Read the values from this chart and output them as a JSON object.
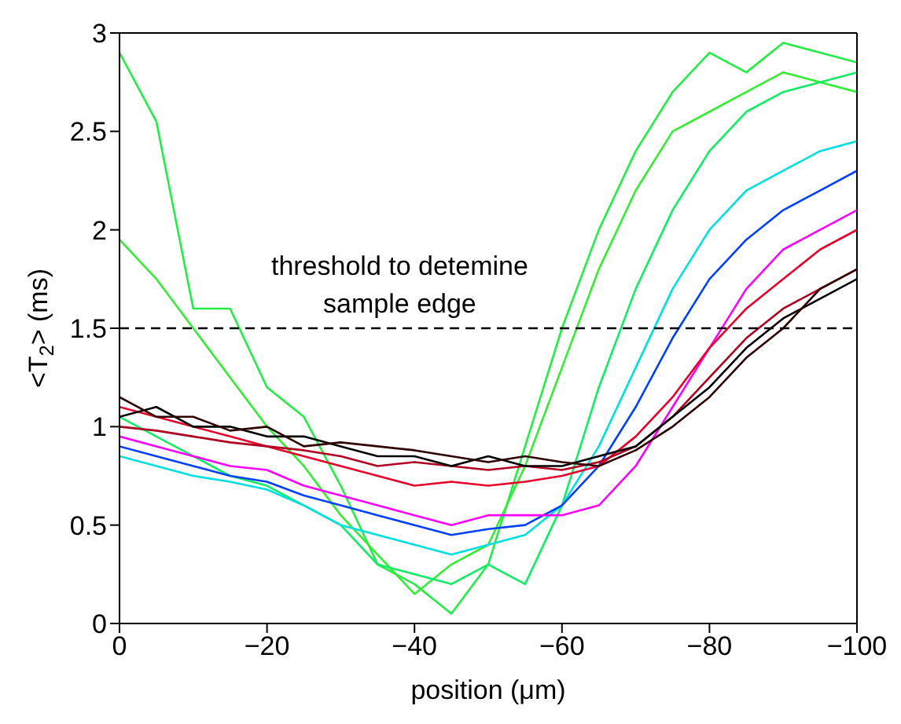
{
  "chart_data": {
    "type": "line",
    "xlabel": "position (μm)",
    "ylabel": "<T$_{2}$> (ms)",
    "x": [
      0,
      -5,
      -10,
      -15,
      -20,
      -25,
      -30,
      -35,
      -40,
      -45,
      -50,
      -55,
      -60,
      -65,
      -70,
      -75,
      -80,
      -85,
      -90,
      -95,
      -100
    ],
    "xlim": [
      0,
      -100
    ],
    "xticks": [
      0,
      -20,
      -40,
      -60,
      -80,
      -100
    ],
    "ylim": [
      0,
      3
    ],
    "yticks": [
      0,
      0.5,
      1,
      1.5,
      2,
      2.5,
      3
    ],
    "grid": false,
    "legend": false,
    "marker": "none",
    "line_style": "solid",
    "ref_lines": [
      {
        "axis": "y",
        "value": 1.5,
        "label": "threshold to detemine sample edge",
        "line_style": "dashed",
        "color": "#000000"
      }
    ],
    "series": [
      {
        "color": "#22ee44",
        "values": [
          2.9,
          2.55,
          1.6,
          1.6,
          1.2,
          1.05,
          0.7,
          0.3,
          0.2,
          0.05,
          0.3,
          0.9,
          1.5,
          2.0,
          2.4,
          2.7,
          2.9,
          2.8,
          2.95,
          2.9,
          2.85
        ]
      },
      {
        "color": "#33ee33",
        "values": [
          1.95,
          1.75,
          1.5,
          1.25,
          1.0,
          0.8,
          0.55,
          0.35,
          0.15,
          0.3,
          0.4,
          0.8,
          1.3,
          1.8,
          2.2,
          2.5,
          2.6,
          2.7,
          2.8,
          2.75,
          2.7
        ]
      },
      {
        "color": "#11ee66",
        "values": [
          1.05,
          0.95,
          0.85,
          0.75,
          0.7,
          0.6,
          0.5,
          0.3,
          0.25,
          0.2,
          0.3,
          0.2,
          0.6,
          1.2,
          1.7,
          2.1,
          2.4,
          2.6,
          2.7,
          2.75,
          2.8
        ]
      },
      {
        "color": "#00e0e0",
        "values": [
          0.85,
          0.8,
          0.75,
          0.72,
          0.68,
          0.6,
          0.5,
          0.45,
          0.4,
          0.35,
          0.4,
          0.45,
          0.6,
          0.9,
          1.3,
          1.7,
          2.0,
          2.2,
          2.3,
          2.4,
          2.45
        ]
      },
      {
        "color": "#0040ff",
        "values": [
          0.9,
          0.85,
          0.8,
          0.75,
          0.72,
          0.65,
          0.6,
          0.55,
          0.5,
          0.45,
          0.48,
          0.5,
          0.6,
          0.8,
          1.1,
          1.45,
          1.75,
          1.95,
          2.1,
          2.2,
          2.3
        ]
      },
      {
        "color": "#ff00ff",
        "values": [
          0.95,
          0.9,
          0.85,
          0.8,
          0.78,
          0.7,
          0.65,
          0.6,
          0.55,
          0.5,
          0.55,
          0.55,
          0.55,
          0.6,
          0.8,
          1.1,
          1.4,
          1.7,
          1.9,
          2.0,
          2.1
        ]
      },
      {
        "color": "#e8002a",
        "values": [
          1.1,
          1.05,
          1.0,
          0.95,
          0.9,
          0.85,
          0.8,
          0.75,
          0.7,
          0.72,
          0.7,
          0.72,
          0.75,
          0.8,
          0.95,
          1.15,
          1.4,
          1.6,
          1.75,
          1.9,
          2.0
        ]
      },
      {
        "color": "#b00020",
        "values": [
          1.0,
          0.98,
          0.95,
          0.92,
          0.9,
          0.88,
          0.85,
          0.8,
          0.82,
          0.8,
          0.78,
          0.8,
          0.78,
          0.82,
          0.9,
          1.05,
          1.25,
          1.45,
          1.6,
          1.7,
          1.8
        ]
      },
      {
        "color": "#000000",
        "values": [
          1.05,
          1.1,
          1.0,
          1.0,
          0.95,
          0.95,
          0.9,
          0.85,
          0.85,
          0.8,
          0.85,
          0.8,
          0.8,
          0.85,
          0.9,
          1.05,
          1.2,
          1.4,
          1.55,
          1.65,
          1.75
        ]
      },
      {
        "color": "#300000",
        "values": [
          1.15,
          1.05,
          1.05,
          0.98,
          1.0,
          0.9,
          0.92,
          0.9,
          0.88,
          0.85,
          0.82,
          0.85,
          0.82,
          0.8,
          0.88,
          1.0,
          1.15,
          1.35,
          1.5,
          1.7,
          1.8
        ]
      }
    ]
  }
}
